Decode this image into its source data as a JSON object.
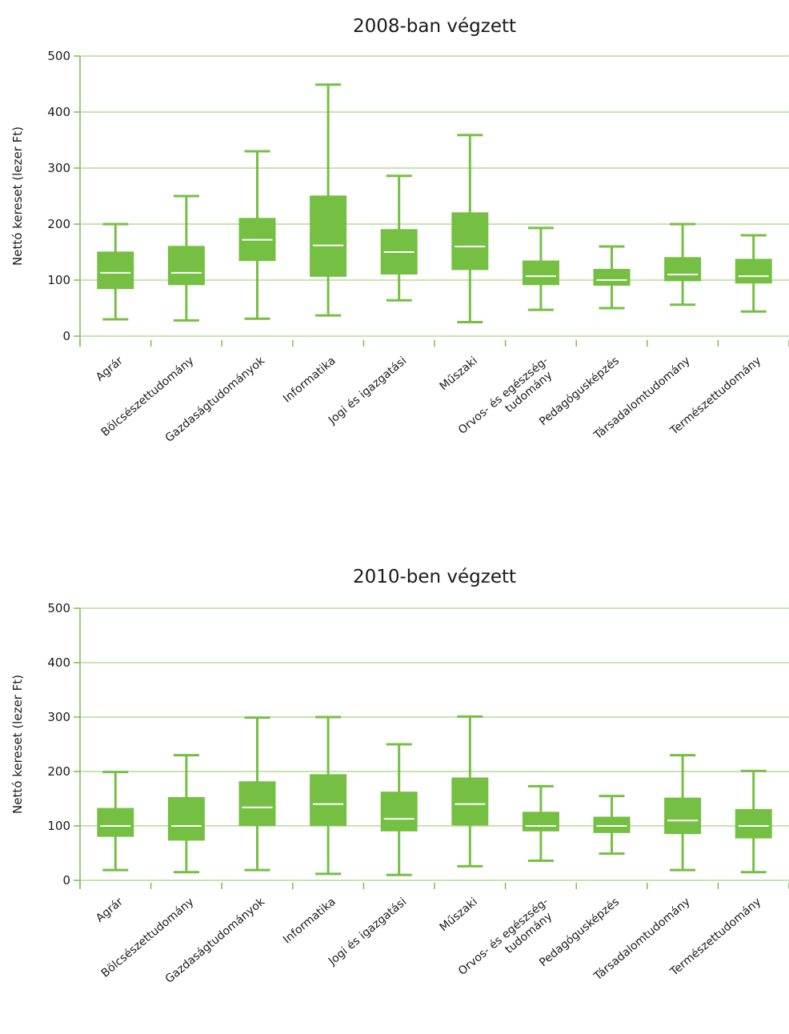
{
  "colors": {
    "box": "#75c043",
    "median": "#ffffff",
    "grid": "#8fcb5f",
    "text": "#1a1a1a"
  },
  "chart_data": [
    {
      "type": "box",
      "title": "2008-ban végzett",
      "ylabel": "Nettó kereset (lezer Ft)",
      "xlabel": "",
      "ylim": [
        0,
        500
      ],
      "yticks": [
        0,
        100,
        200,
        300,
        400,
        500
      ],
      "grid": true,
      "categories": [
        "Agrár",
        "Bölcsészettudomány",
        "Gazdaságtudományok",
        "Informatika",
        "Jogi és igazgatási",
        "Műszaki",
        [
          "Orvos- és egészség-",
          "tudomány"
        ],
        "Pedagógusképzés",
        "Társadalomtudomány",
        "Természettudomány"
      ],
      "boxes": [
        {
          "min": 30,
          "q1": 84,
          "median": 113,
          "q3": 151,
          "max": 200
        },
        {
          "min": 28,
          "q1": 91,
          "median": 113,
          "q3": 161,
          "max": 250
        },
        {
          "min": 31,
          "q1": 134,
          "median": 172,
          "q3": 211,
          "max": 330
        },
        {
          "min": 37,
          "q1": 106,
          "median": 162,
          "q3": 251,
          "max": 449
        },
        {
          "min": 64,
          "q1": 110,
          "median": 150,
          "q3": 191,
          "max": 286
        },
        {
          "min": 25,
          "q1": 118,
          "median": 160,
          "q3": 221,
          "max": 359
        },
        {
          "min": 47,
          "q1": 91,
          "median": 107,
          "q3": 135,
          "max": 193
        },
        {
          "min": 50,
          "q1": 90,
          "median": 100,
          "q3": 120,
          "max": 160
        },
        {
          "min": 56,
          "q1": 98,
          "median": 110,
          "q3": 141,
          "max": 200
        },
        {
          "min": 44,
          "q1": 94,
          "median": 107,
          "q3": 138,
          "max": 180
        }
      ]
    },
    {
      "type": "box",
      "title": "2010-ben végzett",
      "ylabel": "Nettó kereset (lezer Ft)",
      "xlabel": "",
      "ylim": [
        0,
        500
      ],
      "yticks": [
        0,
        100,
        200,
        300,
        400,
        500
      ],
      "grid": true,
      "categories": [
        "Agrár",
        "Bölcsészettudomány",
        "Gazdaságtudományok",
        "Informatika",
        "Jogi és igazgatási",
        "Műszaki",
        [
          "Orvos- és egészség-",
          "tudomány"
        ],
        "Pedagógusképzés",
        "Társadalomtudomány",
        "Természettudomány"
      ],
      "boxes": [
        {
          "min": 19,
          "q1": 80,
          "median": 100,
          "q3": 133,
          "max": 199
        },
        {
          "min": 15,
          "q1": 73,
          "median": 100,
          "q3": 153,
          "max": 230
        },
        {
          "min": 19,
          "q1": 100,
          "median": 134,
          "q3": 182,
          "max": 299
        },
        {
          "min": 12,
          "q1": 100,
          "median": 140,
          "q3": 195,
          "max": 300
        },
        {
          "min": 10,
          "q1": 90,
          "median": 113,
          "q3": 163,
          "max": 250
        },
        {
          "min": 26,
          "q1": 101,
          "median": 140,
          "q3": 189,
          "max": 301
        },
        {
          "min": 36,
          "q1": 90,
          "median": 100,
          "q3": 126,
          "max": 173
        },
        {
          "min": 49,
          "q1": 87,
          "median": 100,
          "q3": 117,
          "max": 155
        },
        {
          "min": 19,
          "q1": 85,
          "median": 110,
          "q3": 152,
          "max": 230
        },
        {
          "min": 15,
          "q1": 77,
          "median": 100,
          "q3": 131,
          "max": 201
        }
      ]
    }
  ]
}
